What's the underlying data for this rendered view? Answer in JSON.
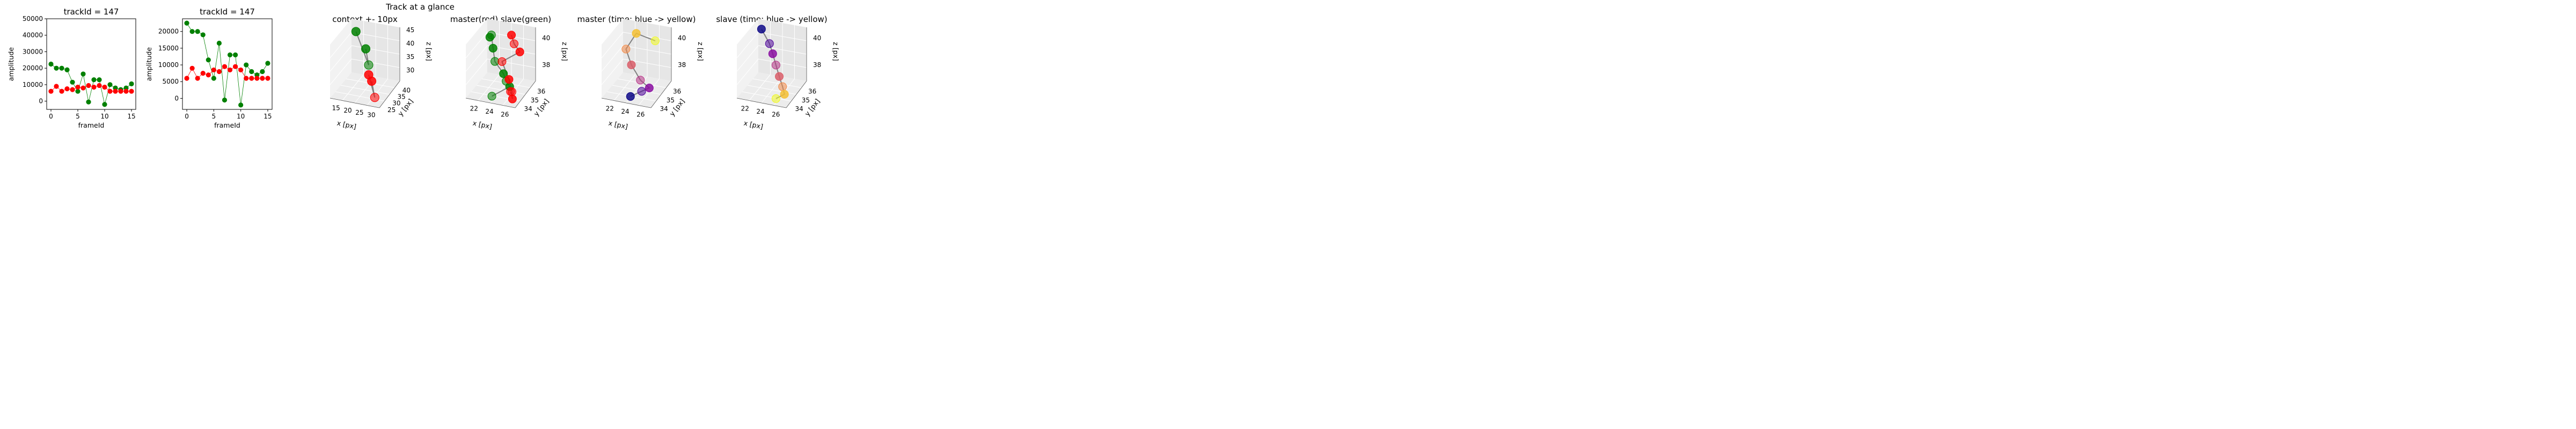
{
  "figure": {
    "suptitle": "Track at a glance"
  },
  "chart_data": [
    {
      "type": "line",
      "title": "trackId = 147",
      "xlabel": "frameId",
      "ylabel": "amplitude",
      "xlim": [
        -0.8,
        15.8
      ],
      "ylim": [
        -5000,
        50000
      ],
      "xticks": [
        0,
        5,
        10,
        15
      ],
      "yticks": [
        0,
        10000,
        20000,
        30000,
        40000,
        50000
      ],
      "x": [
        0,
        1,
        2,
        3,
        4,
        5,
        6,
        7,
        8,
        9,
        10,
        11,
        12,
        13,
        14,
        15
      ],
      "series": [
        {
          "color": "#008000",
          "values": [
            22500,
            20000,
            20000,
            19000,
            11500,
            6000,
            16500,
            -500,
            13000,
            13000,
            -2000,
            10000,
            8000,
            7000,
            8000,
            10500
          ]
        },
        {
          "color": "#ff0000",
          "values": [
            6000,
            9000,
            6000,
            7500,
            7000,
            8500,
            8000,
            9500,
            8500,
            9500,
            8500,
            6000,
            6000,
            6000,
            6000,
            6000
          ]
        }
      ]
    },
    {
      "type": "line",
      "title": "trackId = 147",
      "xlabel": "frameId",
      "ylabel": "amplitude",
      "xlim": [
        -0.8,
        15.8
      ],
      "ylim": [
        -3300,
        23800
      ],
      "xticks": [
        0,
        5,
        10,
        15
      ],
      "yticks": [
        0,
        5000,
        10000,
        15000,
        20000
      ],
      "x": [
        0,
        1,
        2,
        3,
        4,
        5,
        6,
        7,
        8,
        9,
        10,
        11,
        12,
        13,
        14,
        15
      ],
      "series": [
        {
          "color": "#008000",
          "values": [
            22500,
            20000,
            20000,
            19000,
            11500,
            6000,
            16500,
            -500,
            13000,
            13000,
            -2000,
            10000,
            8000,
            7000,
            8000,
            10500
          ]
        },
        {
          "color": "#ff0000",
          "values": [
            6000,
            9000,
            6000,
            7500,
            7000,
            8500,
            8000,
            9500,
            8500,
            9500,
            8500,
            6000,
            6000,
            6000,
            6000,
            6000
          ]
        }
      ]
    },
    {
      "type": "scatter",
      "title": "context +- 10px",
      "xlabel": "x [px]",
      "ylabel": "y [px]",
      "zlabel": "z [px]",
      "xticks": [
        "15",
        "20",
        "25",
        "30"
      ],
      "yticks": [
        "25",
        "30",
        "35",
        "40"
      ],
      "zticks": [
        "30",
        "35",
        "40",
        "45"
      ],
      "series": [
        {
          "name": "",
          "color": "#008000",
          "points": [
            [
              24.5,
              35.5,
              39.5
            ],
            [
              25.0,
              35.0,
              39.0
            ],
            [
              23.5,
              36.0,
              40.0
            ]
          ]
        },
        {
          "name": "",
          "color": "#ff0000",
          "points": [
            [
              25.5,
              34.5,
              38.5
            ],
            [
              26.0,
              34.0,
              38.0
            ],
            [
              25.0,
              35.0,
              38.5
            ]
          ]
        }
      ]
    },
    {
      "type": "scatter",
      "title": "master(red) slave(green)",
      "xlabel": "x [px]",
      "ylabel": "y [px]",
      "zlabel": "z [px]",
      "xticks": [
        "22",
        "24",
        "26"
      ],
      "yticks": [
        "34",
        "35",
        "36"
      ],
      "zticks": [
        "38",
        "40"
      ],
      "series": [
        {
          "name": "",
          "color": "#008000",
          "points": [
            [
              22.2,
              36.0,
              40.5
            ],
            [
              22.6,
              35.7,
              41.0
            ],
            [
              23.0,
              35.4,
              40.2
            ],
            [
              23.5,
              35.0,
              39.5
            ],
            [
              24.5,
              34.8,
              38.8
            ],
            [
              25.0,
              34.5,
              38.5
            ],
            [
              25.5,
              34.3,
              38.3
            ],
            [
              24.0,
              34.0,
              37.5
            ]
          ]
        },
        {
          "name": "",
          "color": "#ff0000",
          "points": [
            [
              24.5,
              35.8,
              41.2
            ],
            [
              25.0,
              35.5,
              40.8
            ],
            [
              25.8,
              35.2,
              40.5
            ],
            [
              24.2,
              35.0,
              39.6
            ],
            [
              25.2,
              34.6,
              38.6
            ],
            [
              25.8,
              34.2,
              38.0
            ],
            [
              26.0,
              34.0,
              37.6
            ],
            [
              25.5,
              34.4,
              37.8
            ]
          ]
        }
      ]
    },
    {
      "type": "scatter",
      "title": "master (time: blue -> yellow)",
      "xlabel": "x [px]",
      "ylabel": "y [px]",
      "zlabel": "z [px]",
      "xticks": [
        "22",
        "24",
        "26"
      ],
      "yticks": [
        "34",
        "35",
        "36"
      ],
      "zticks": [
        "38",
        "40"
      ],
      "series": [
        {
          "name": "",
          "color": "#1f1f9f",
          "points": [
            [
              25.0,
              34.2,
              37.6
            ],
            [
              25.5,
              34.5,
              37.9
            ],
            [
              25.8,
              34.8,
              38.0
            ],
            [
              25.2,
              35.0,
              38.3
            ],
            [
              24.5,
              35.4,
              39.0
            ],
            [
              24.0,
              35.8,
              39.8
            ],
            [
              24.5,
              36.0,
              41.0
            ],
            [
              25.5,
              36.2,
              40.5
            ]
          ]
        }
      ]
    },
    {
      "type": "scatter",
      "title": "slave (time: blue -> yellow)",
      "xlabel": "x [px]",
      "ylabel": "y [px]",
      "zlabel": "z [px]",
      "xticks": [
        "22",
        "24",
        "26"
      ],
      "yticks": [
        "34",
        "35",
        "36"
      ],
      "zticks": [
        "38",
        "40"
      ],
      "series": [
        {
          "name": "",
          "color": "#1f1f9f",
          "points": [
            [
              22.5,
              36.0,
              41.0
            ],
            [
              23.5,
              35.6,
              40.3
            ],
            [
              24.0,
              35.3,
              39.8
            ],
            [
              24.5,
              35.0,
              39.2
            ],
            [
              25.0,
              34.7,
              38.6
            ],
            [
              25.5,
              34.4,
              38.1
            ],
            [
              25.8,
              34.2,
              37.7
            ],
            [
              25.2,
              34.0,
              37.4
            ]
          ]
        }
      ]
    }
  ]
}
